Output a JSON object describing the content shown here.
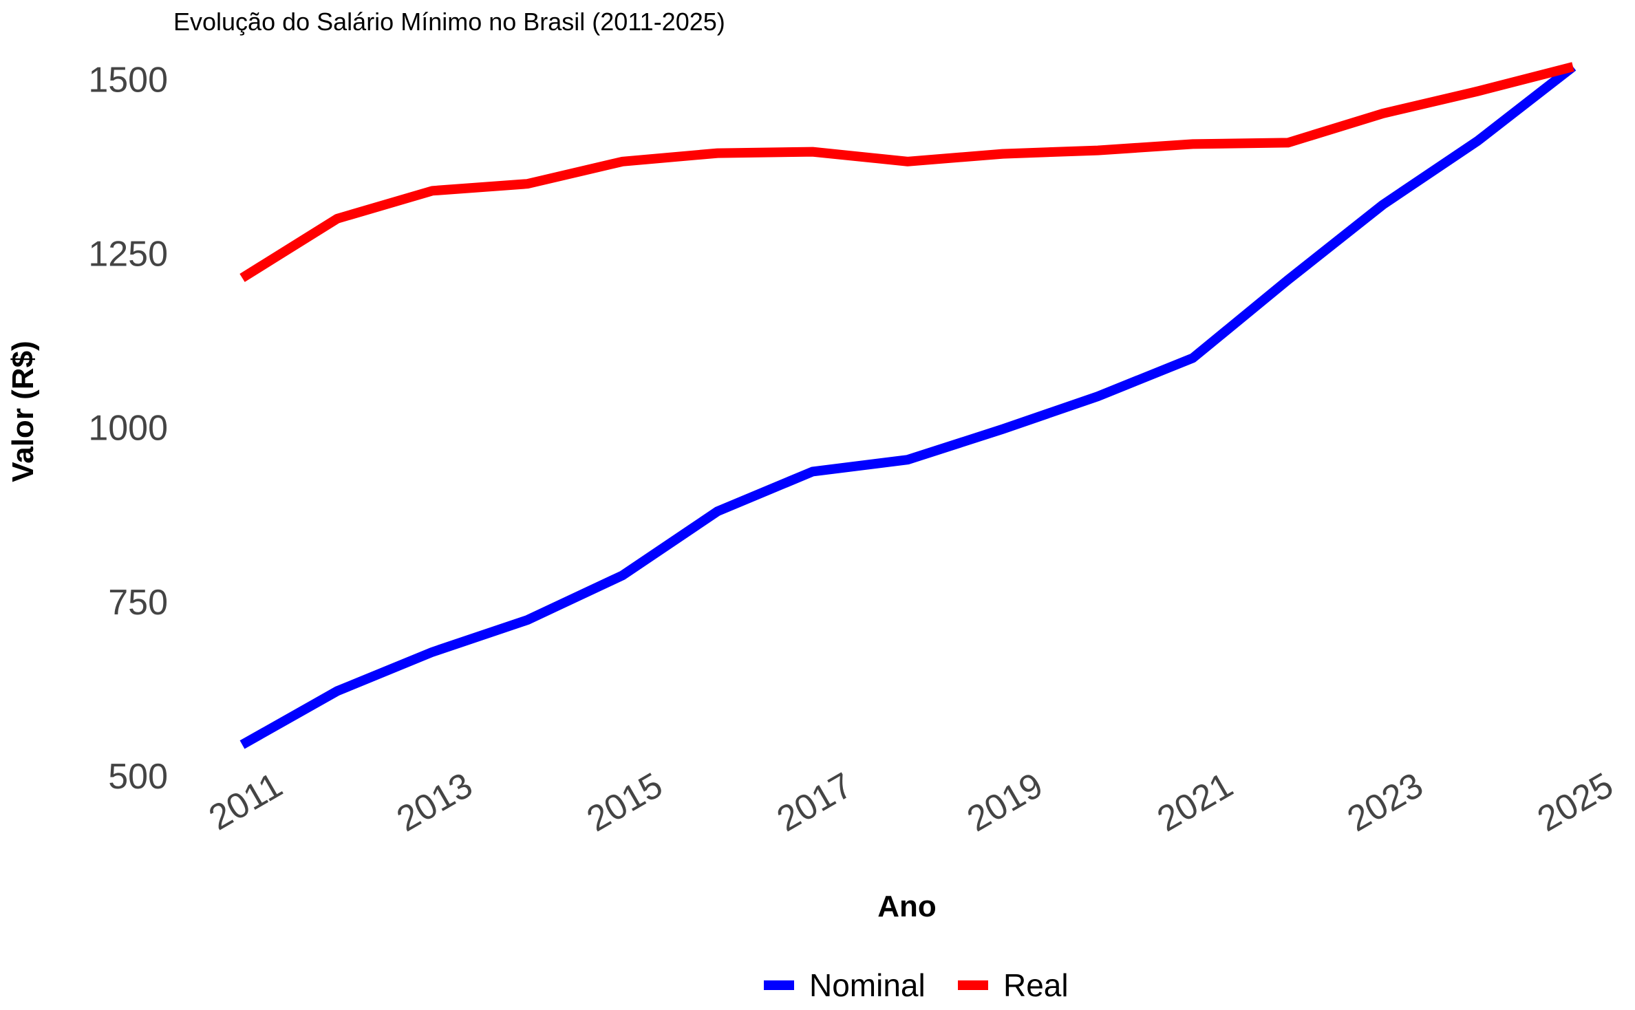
{
  "chart_data": {
    "type": "line",
    "title": "Evolução do Salário Mínimo no Brasil (2011-2025)",
    "xlabel": "Ano",
    "ylabel": "Valor (R$)",
    "x": [
      2011,
      2012,
      2013,
      2014,
      2015,
      2016,
      2017,
      2018,
      2019,
      2020,
      2021,
      2022,
      2023,
      2024,
      2025
    ],
    "x_ticks": [
      2011,
      2013,
      2015,
      2017,
      2019,
      2021,
      2023,
      2025
    ],
    "y_ticks": [
      500,
      750,
      1000,
      1250,
      1500
    ],
    "xlim": [
      2011,
      2025
    ],
    "ylim": [
      500,
      1520
    ],
    "grid": false,
    "legend_position": "bottom",
    "series": [
      {
        "name": "Nominal",
        "color": "#0000ff",
        "values": [
          545,
          622,
          678,
          724,
          788,
          880,
          937,
          954,
          998,
          1045,
          1100,
          1212,
          1320,
          1412,
          1518
        ]
      },
      {
        "name": "Real",
        "color": "#ff0000",
        "values": [
          1215,
          1300,
          1340,
          1350,
          1382,
          1394,
          1396,
          1382,
          1393,
          1398,
          1407,
          1409,
          1451,
          1483,
          1518
        ]
      }
    ]
  }
}
